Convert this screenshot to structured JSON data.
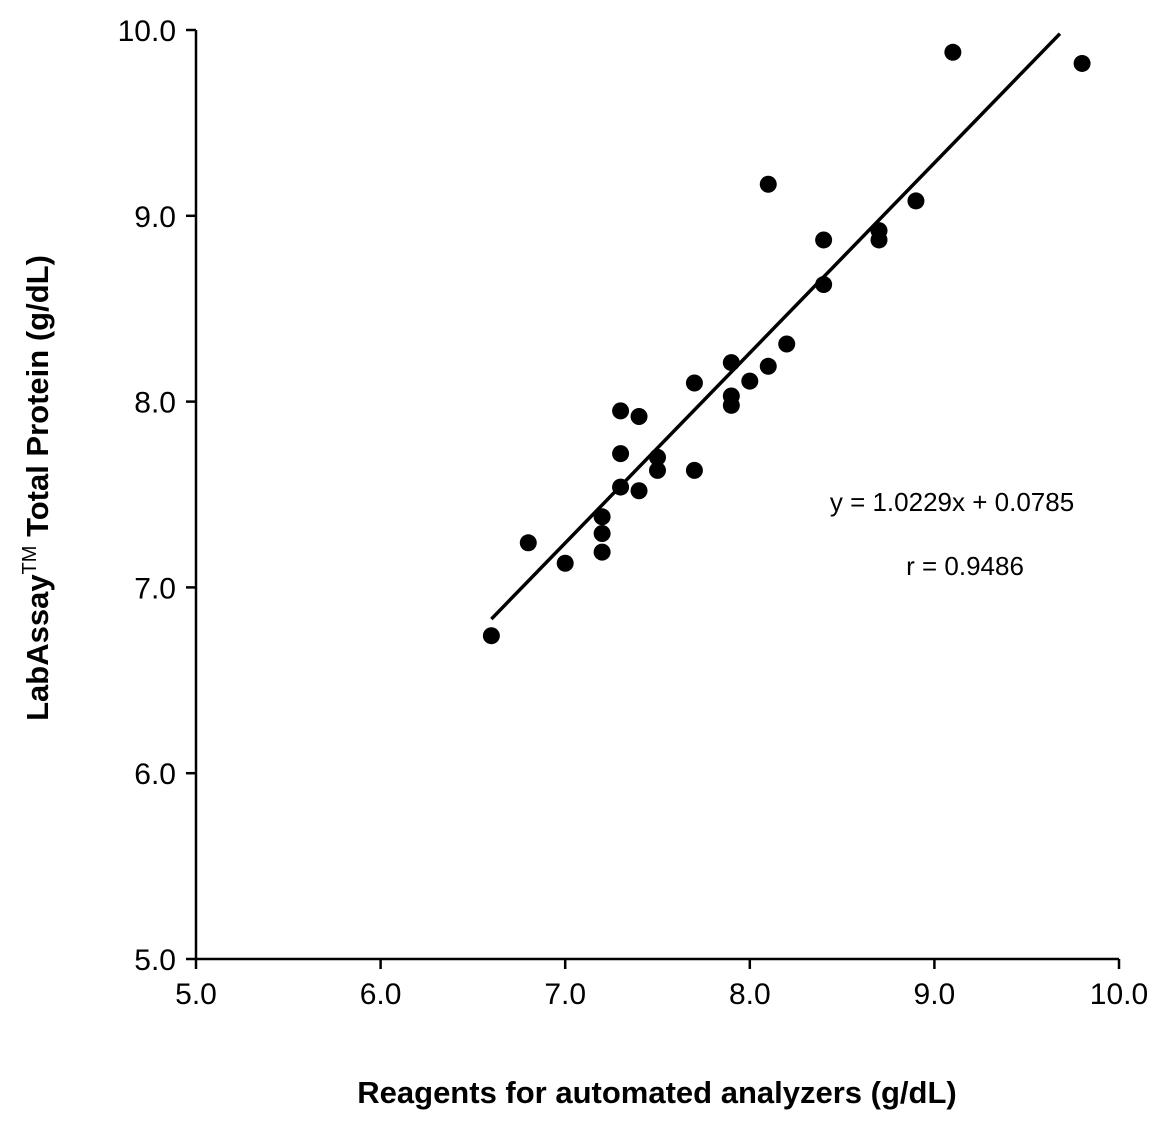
{
  "chart_data": {
    "type": "scatter",
    "xlabel": "Reagents for automated analyzers (g/dL)",
    "ylabel": "LabAssay",
    "ylabel_superscript": "TM",
    "ylabel_suffix": " Total Protein (g/dL)",
    "xlim": [
      5.0,
      10.0
    ],
    "ylim": [
      5.0,
      10.0
    ],
    "xticks": [
      "5.0",
      "6.0",
      "7.0",
      "8.0",
      "9.0",
      "10.0"
    ],
    "yticks": [
      "5.0",
      "6.0",
      "7.0",
      "8.0",
      "9.0",
      "10.0"
    ],
    "grid": false,
    "series": [
      {
        "points": [
          [
            6.6,
            6.74
          ],
          [
            6.8,
            7.24
          ],
          [
            7.0,
            7.13
          ],
          [
            7.2,
            7.19
          ],
          [
            7.2,
            7.29
          ],
          [
            7.2,
            7.38
          ],
          [
            7.3,
            7.54
          ],
          [
            7.3,
            7.72
          ],
          [
            7.3,
            7.95
          ],
          [
            7.4,
            7.52
          ],
          [
            7.4,
            7.92
          ],
          [
            7.5,
            7.63
          ],
          [
            7.5,
            7.7
          ],
          [
            7.7,
            7.63
          ],
          [
            7.7,
            8.1
          ],
          [
            7.9,
            7.98
          ],
          [
            7.9,
            8.03
          ],
          [
            7.9,
            8.21
          ],
          [
            8.0,
            8.11
          ],
          [
            8.1,
            8.19
          ],
          [
            8.1,
            9.17
          ],
          [
            8.2,
            8.31
          ],
          [
            8.4,
            8.63
          ],
          [
            8.4,
            8.87
          ],
          [
            8.7,
            8.87
          ],
          [
            8.7,
            8.92
          ],
          [
            8.9,
            9.08
          ],
          [
            9.1,
            9.88
          ],
          [
            9.8,
            9.82
          ]
        ],
        "color": "#000000"
      }
    ],
    "trendline": {
      "slope": 1.0229,
      "intercept": 0.0785,
      "x_range": [
        6.6,
        9.68
      ]
    },
    "annotations": {
      "equation": "y = 1.0229x + 0.0785",
      "r_value": "r = 0.9486"
    }
  }
}
